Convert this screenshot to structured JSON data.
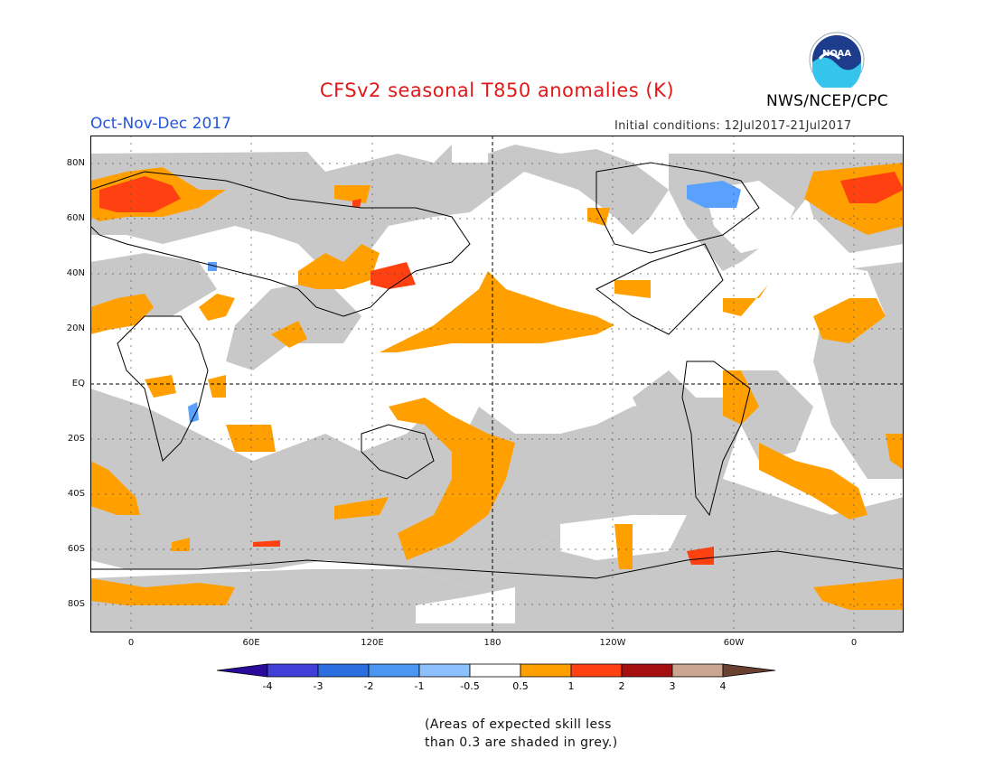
{
  "title": "CFSv2 seasonal T850 anomalies (K)",
  "season": "Oct-Nov-Dec 2017",
  "agency": "NWS/NCEP/CPC",
  "initial_conditions": "Initial conditions: 12Jul2017-21Jul2017",
  "logo_text": "NOAA",
  "colors": {
    "title": "#e01818",
    "season": "#2255dd",
    "grey_skill": "#c8c8c8",
    "anom_0_5": "#ff9f00",
    "anom_1": "#ff4010",
    "anom_2": "#a60f0f",
    "neg_0_5": "#8cc0ff",
    "neg_1": "#5aa0ff"
  },
  "lat_labels": [
    "80N",
    "60N",
    "40N",
    "20N",
    "EQ",
    "20S",
    "40S",
    "60S",
    "80S"
  ],
  "lon_labels": [
    "0",
    "60E",
    "120E",
    "180",
    "120W",
    "60W",
    "0"
  ],
  "colorbar": {
    "labels": [
      "-4",
      "-3",
      "-2",
      "-1",
      "-0.5",
      "0.5",
      "1",
      "2",
      "3",
      "4"
    ],
    "colors": [
      "#2a0a9a",
      "#4040d8",
      "#2a6ee0",
      "#4a96f0",
      "#8cc0ff",
      "#ffffff",
      "#ff9f00",
      "#ff4010",
      "#a60f0f",
      "#c9a592",
      "#6a4030"
    ]
  },
  "note_line1": "(Areas of expected skill less",
  "note_line2": "than 0.3 are shaded in grey.)"
}
